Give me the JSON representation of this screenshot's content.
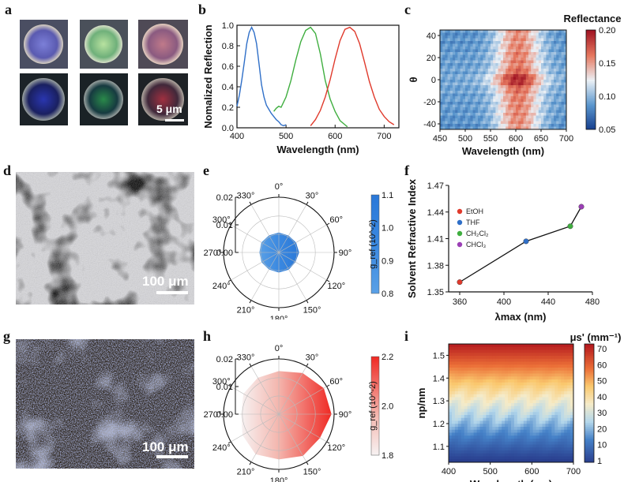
{
  "panel_labels": [
    "a",
    "b",
    "c",
    "d",
    "e",
    "f",
    "g",
    "h",
    "i"
  ],
  "panel_a": {
    "scale_bar": "5 μm"
  },
  "panel_d": {
    "scale_bar": "100 μm"
  },
  "panel_g": {
    "scale_bar": "100 μm"
  },
  "colors": {
    "blue": "#2f6fc8",
    "green": "#3fae3f",
    "red": "#e03a2c",
    "black": "#111111"
  },
  "chart_data": [
    {
      "id": "b",
      "type": "line",
      "xlabel": "Wavelength (nm)",
      "ylabel": "Nomalized Reflection",
      "xlim": [
        400,
        730
      ],
      "ylim": [
        0,
        1.0
      ],
      "xticks": [
        "400",
        "500",
        "600",
        "700"
      ],
      "yticks": [
        "0.0",
        "0.2",
        "0.4",
        "0.6",
        "0.8",
        "1.0"
      ],
      "series": [
        {
          "name": "blue",
          "x": [
            400,
            405,
            410,
            415,
            420,
            425,
            430,
            435,
            440,
            445,
            450,
            455,
            460,
            465,
            470,
            475,
            480,
            485,
            490,
            495,
            500
          ],
          "y": [
            0.21,
            0.32,
            0.47,
            0.64,
            0.82,
            0.93,
            0.98,
            0.93,
            0.82,
            0.62,
            0.42,
            0.3,
            0.22,
            0.18,
            0.14,
            0.11,
            0.08,
            0.06,
            0.03,
            0.02,
            0.03
          ]
        },
        {
          "name": "green",
          "x": [
            475,
            480,
            485,
            490,
            500,
            510,
            520,
            530,
            540,
            550,
            560,
            570,
            580,
            590,
            600,
            610,
            620,
            625
          ],
          "y": [
            0.16,
            0.19,
            0.21,
            0.2,
            0.3,
            0.46,
            0.66,
            0.84,
            0.95,
            0.98,
            0.92,
            0.72,
            0.46,
            0.28,
            0.16,
            0.07,
            0.03,
            0.01
          ]
        },
        {
          "name": "red",
          "x": [
            550,
            560,
            570,
            580,
            590,
            600,
            610,
            620,
            630,
            640,
            650,
            660,
            670,
            680,
            690,
            700,
            710,
            720
          ],
          "y": [
            0.02,
            0.08,
            0.17,
            0.3,
            0.47,
            0.67,
            0.85,
            0.96,
            0.98,
            0.94,
            0.82,
            0.64,
            0.45,
            0.3,
            0.18,
            0.11,
            0.06,
            0.03
          ]
        }
      ]
    },
    {
      "id": "c",
      "type": "heatmap",
      "title": "Reflectance",
      "xlabel": "Wavelength (nm)",
      "ylabel": "θ",
      "xlim": [
        450,
        700
      ],
      "ylim": [
        -45,
        45
      ],
      "xticks": [
        "450",
        "500",
        "550",
        "600",
        "650",
        "700"
      ],
      "yticks": [
        "40",
        "20",
        "0",
        "-20",
        "-40"
      ],
      "colorbar": {
        "min": 0.05,
        "max": 0.2,
        "ticks": [
          "0.20",
          "0.15",
          "0.10",
          "0.05"
        ]
      },
      "peak_center_nm": 605,
      "peak_width_nm": 45
    },
    {
      "id": "e",
      "type": "polar",
      "angles": [
        "0°",
        "30°",
        "60°",
        "90°",
        "120°",
        "150°",
        "180°",
        "210°",
        "240°",
        "270°",
        "300°",
        "330°"
      ],
      "radial_ticks": [
        "0.02",
        "0.01",
        "0.00"
      ],
      "colorbar": {
        "label": "g_ref (10^-2)",
        "ticks": [
          "1.1",
          "1.0",
          "0.9",
          "0.8"
        ]
      },
      "values": [
        0.009,
        0.0088,
        0.009,
        0.0092,
        0.0087,
        0.009,
        0.0091,
        0.0089,
        0.009,
        0.0088,
        0.0091,
        0.0089
      ]
    },
    {
      "id": "f",
      "type": "line",
      "xlabel": "λmax (nm)",
      "ylabel": "Solvent Refractive Index",
      "xlim": [
        350,
        480
      ],
      "ylim": [
        1.35,
        1.47
      ],
      "xticks": [
        "360",
        "400",
        "440",
        "480"
      ],
      "yticks": [
        "1.35",
        "1.38",
        "1.41",
        "1.44",
        "1.47"
      ],
      "points": [
        {
          "name": "EtOH",
          "x": 360,
          "y": 1.361,
          "color": "#e03a2c"
        },
        {
          "name": "THF",
          "x": 420,
          "y": 1.407,
          "color": "#2f6fc8"
        },
        {
          "name": "CH2Cl2",
          "x": 460,
          "y": 1.424,
          "color": "#3fae3f"
        },
        {
          "name": "CHCl3",
          "x": 470,
          "y": 1.446,
          "color": "#9b3fb5"
        }
      ],
      "legend": [
        "EtOH",
        "THF",
        "CH₂Cl₂",
        "CHCl₃"
      ]
    },
    {
      "id": "h",
      "type": "polar",
      "angles": [
        "0°",
        "30°",
        "60°",
        "90°",
        "120°",
        "150°",
        "180°",
        "210°",
        "240°",
        "270°",
        "300°",
        "330°"
      ],
      "radial_ticks": [
        "0.02",
        "0.01",
        "0.00"
      ],
      "colorbar": {
        "label": "g_ref (10^-2)",
        "ticks": [
          "2.2",
          "2.0",
          "1.8"
        ]
      },
      "values": [
        0.0195,
        0.0215,
        0.0235,
        0.0238,
        0.0215,
        0.0218,
        0.0205,
        0.021,
        0.019,
        0.017,
        0.0185,
        0.019
      ]
    },
    {
      "id": "i",
      "type": "heatmap",
      "title": "μs' (mm⁻¹)",
      "xlabel": "Wavelength (nm)",
      "ylabel": "np/nm",
      "xlim": [
        400,
        700
      ],
      "ylim": [
        1.03,
        1.55
      ],
      "xticks": [
        "400",
        "500",
        "600",
        "700"
      ],
      "yticks": [
        "1.5",
        "1.4",
        "1.3",
        "1.2",
        "1.1"
      ],
      "colorbar": {
        "min": 1,
        "max": 75,
        "ticks": [
          "70",
          "60",
          "50",
          "40",
          "30",
          "20",
          "10",
          "1"
        ]
      }
    }
  ]
}
